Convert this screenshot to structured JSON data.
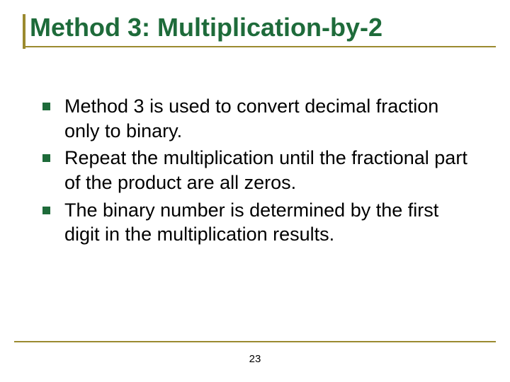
{
  "colors": {
    "title": "#1e6b3a",
    "underline": "#9b8a2f",
    "bullet": "#1e6b3a",
    "accent_bar": "#9b8a2f",
    "body_text": "#000000",
    "background": "#ffffff"
  },
  "typography": {
    "title_fontsize": 36,
    "title_weight": "bold",
    "body_fontsize": 27,
    "pagenum_fontsize": 15,
    "font_family": "Arial"
  },
  "title": "Method 3: Multiplication-by-2",
  "bullets": [
    {
      "text": "Method 3 is used to convert decimal fraction only to binary."
    },
    {
      "text": "Repeat the multiplication until the fractional part of the product are all zeros."
    },
    {
      "text": "The binary number is determined by the first digit in the multiplication results."
    }
  ],
  "page_number": "23"
}
